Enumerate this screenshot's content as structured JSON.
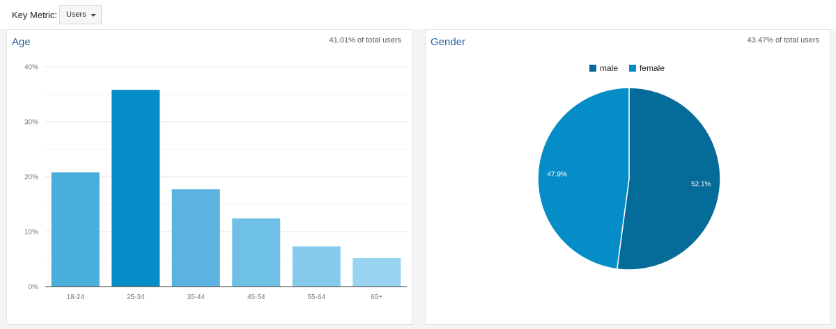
{
  "header": {
    "key_metric_label": "Key Metric:",
    "key_metric_value": "Users"
  },
  "age_panel": {
    "title": "Age",
    "note": "41.01% of total users"
  },
  "gender_panel": {
    "title": "Gender",
    "note": "43.47% of total users"
  },
  "chart_data": [
    {
      "type": "bar",
      "title": "Age",
      "categories": [
        "18-24",
        "25-34",
        "35-44",
        "45-54",
        "55-64",
        "65+"
      ],
      "values": [
        20.8,
        35.8,
        17.7,
        12.4,
        7.3,
        5.2
      ],
      "colors": [
        "#4aaedb",
        "#058dc7",
        "#5ab4df",
        "#6fc0e6",
        "#87cbec",
        "#98d4ef"
      ],
      "ylim": [
        0,
        40
      ],
      "yticks": [
        0,
        10,
        20,
        30,
        40
      ],
      "ytick_labels": [
        "0%",
        "10%",
        "20%",
        "30%",
        "40%"
      ],
      "grid": true
    },
    {
      "type": "pie",
      "title": "Gender",
      "legend_position": "top",
      "slices": [
        {
          "label": "male",
          "value": 52.1,
          "value_label": "52.1%",
          "color": "#056b98"
        },
        {
          "label": "female",
          "value": 47.9,
          "value_label": "47.9%",
          "color": "#058dc7"
        }
      ]
    }
  ]
}
